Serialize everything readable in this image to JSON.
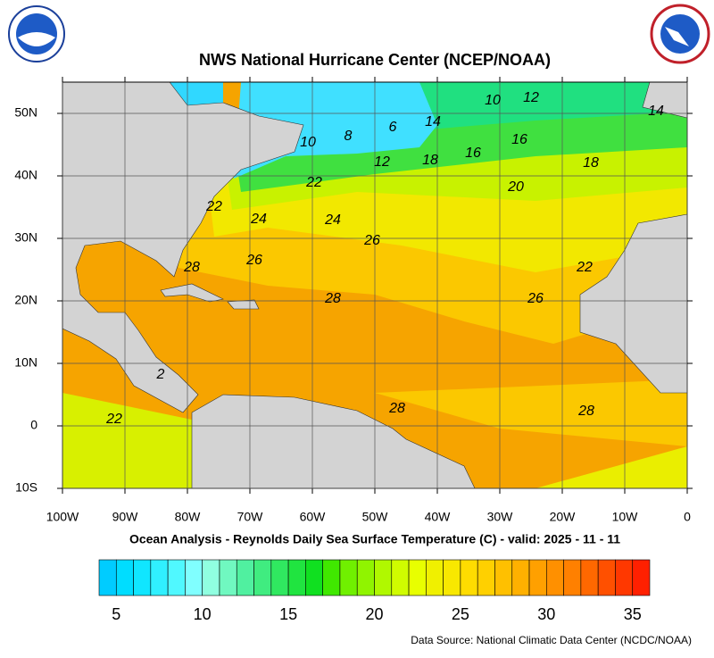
{
  "chart_data": {
    "type": "contour-map",
    "title": "NWS National Hurricane Center (NCEP/NOAA)",
    "subtitle": "Ocean Analysis - Reynolds Daily Sea Surface Temperature (C) - valid: 2025 - 11 - 11",
    "source": "Data Source: National Climatic Data Center (NCDC/NOAA)",
    "xlim": [
      -100,
      0
    ],
    "ylim": [
      -10,
      55
    ],
    "xticks": [
      {
        "value": -100,
        "label": "100W"
      },
      {
        "value": -90,
        "label": "90W"
      },
      {
        "value": -80,
        "label": "80W"
      },
      {
        "value": -70,
        "label": "70W"
      },
      {
        "value": -60,
        "label": "60W"
      },
      {
        "value": -50,
        "label": "50W"
      },
      {
        "value": -40,
        "label": "40W"
      },
      {
        "value": -30,
        "label": "30W"
      },
      {
        "value": -20,
        "label": "20W"
      },
      {
        "value": -10,
        "label": "10W"
      },
      0
    ],
    "yticks": [
      {
        "value": 50,
        "label": "50N"
      },
      {
        "value": 40,
        "label": "40N"
      },
      {
        "value": 30,
        "label": "30N"
      },
      {
        "value": 20,
        "label": "20N"
      },
      {
        "value": 10,
        "label": "10N"
      },
      0,
      {
        "value": -10,
        "label": "10S"
      }
    ],
    "grid": true,
    "contour_labels": [
      "10",
      "12",
      "14",
      "6",
      "8",
      "10",
      "12",
      "18",
      "16",
      "16",
      "18",
      "14",
      "22",
      "20",
      "22",
      "24",
      "24",
      "26",
      "26",
      "28",
      "22",
      "26",
      "28",
      "2",
      "28",
      "28",
      "22"
    ],
    "colorbar": {
      "lim": [
        4,
        36
      ],
      "ticks": [
        5,
        10,
        15,
        20,
        25,
        30,
        35
      ],
      "colors": [
        "#00ccff",
        "#00ddff",
        "#10e6ff",
        "#30f0ff",
        "#50f8ff",
        "#80ffff",
        "#90ffe0",
        "#70f8c0",
        "#50f0a0",
        "#40ec80",
        "#30e860",
        "#20e440",
        "#10e020",
        "#40e800",
        "#70f000",
        "#90f400",
        "#b0f800",
        "#d0fc00",
        "#e8ff00",
        "#f0f000",
        "#f8e800",
        "#ffdc00",
        "#ffd000",
        "#ffc000",
        "#ffb000",
        "#ffa000",
        "#ff9000",
        "#ff8000",
        "#ff6800",
        "#ff5000",
        "#ff3800",
        "#ff2000"
      ]
    }
  }
}
